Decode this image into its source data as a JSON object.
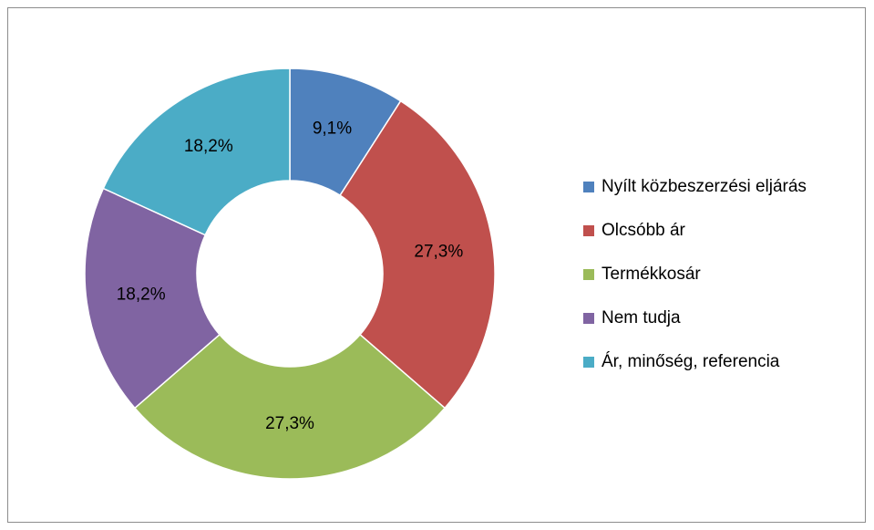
{
  "chart_data": {
    "type": "donut",
    "categories": [
      "Nyílt közbeszerzési eljárás",
      "Olcsóbb ár",
      "Termékkosár",
      "Nem tudja",
      "Ár, minőség, referencia"
    ],
    "values": [
      9.1,
      27.3,
      27.3,
      18.2,
      18.2
    ],
    "value_labels": [
      "9,1%",
      "27,3%",
      "27,3%",
      "18,2%",
      "18,2%"
    ],
    "colors": [
      "#4f81bd",
      "#c0504d",
      "#9bbb59",
      "#8064a2",
      "#4bacc6"
    ],
    "legend": "right"
  }
}
